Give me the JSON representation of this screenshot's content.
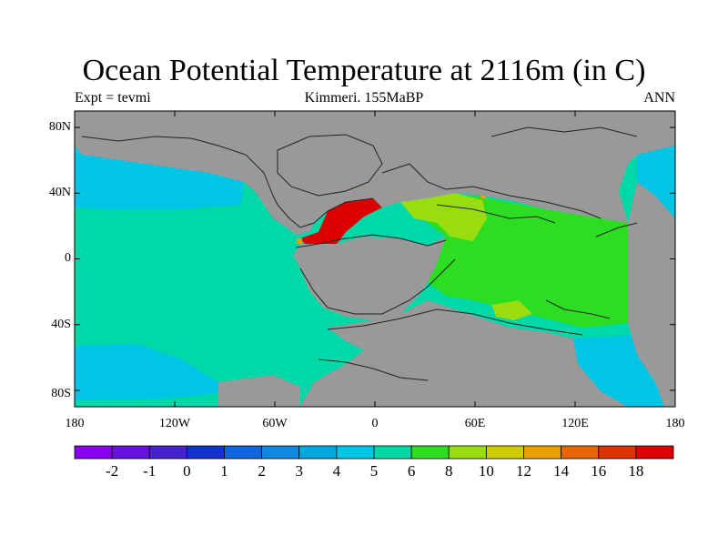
{
  "title": "Ocean Potential Temperature at 2116m (in C)",
  "subtitle_left": "Expt = tevmi",
  "subtitle_center": "Kimmeri. 155MaBP",
  "subtitle_right": "ANN",
  "colors": {
    "land": "#999999",
    "cold_ocean": "#00c5e5",
    "mid_ocean": "#00d8a8",
    "warm_ocean": "#2ddd22",
    "lime": "#99dd11",
    "hot": "#dd0000",
    "orange": "#e8a000"
  },
  "chart_data": {
    "type": "map",
    "xaxis": {
      "range": [
        -180,
        180
      ],
      "ticks": [
        {
          "value": -180,
          "label": "180"
        },
        {
          "value": -120,
          "label": "120W"
        },
        {
          "value": -60,
          "label": "60W"
        },
        {
          "value": 0,
          "label": "0"
        },
        {
          "value": 60,
          "label": "60E"
        },
        {
          "value": 120,
          "label": "120E"
        },
        {
          "value": 180,
          "label": "180"
        }
      ]
    },
    "yaxis": {
      "range": [
        -90,
        90
      ],
      "ticks": [
        {
          "value": 80,
          "label": "80N"
        },
        {
          "value": 40,
          "label": "40N"
        },
        {
          "value": 0,
          "label": "0"
        },
        {
          "value": -40,
          "label": "40S"
        },
        {
          "value": -80,
          "label": "80S"
        }
      ]
    },
    "colorbar": {
      "labels": [
        "-2",
        "-1",
        "0",
        "1",
        "2",
        "3",
        "4",
        "5",
        "6",
        "8",
        "10",
        "12",
        "14",
        "16",
        "18"
      ],
      "colors": [
        "#8800ee",
        "#6611dd",
        "#4422cc",
        "#1133cc",
        "#1166dd",
        "#1188dd",
        "#00a8e0",
        "#00c5e5",
        "#00d8a8",
        "#2ddd22",
        "#99dd11",
        "#cccc00",
        "#e8a000",
        "#e86600",
        "#dd3300",
        "#dd0000"
      ]
    }
  }
}
